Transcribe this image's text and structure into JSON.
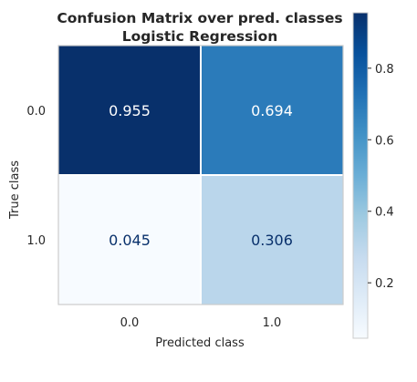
{
  "chart_data": {
    "type": "heatmap",
    "title": "Confusion Matrix over pred. classes",
    "subtitle": "Logistic Regression",
    "xlabel": "Predicted class",
    "ylabel": "True class",
    "x_categories": [
      "0.0",
      "1.0"
    ],
    "y_categories": [
      "0.0",
      "1.0"
    ],
    "values": [
      [
        0.955,
        0.694
      ],
      [
        0.045,
        0.306
      ]
    ],
    "value_labels": [
      [
        "0.955",
        "0.694"
      ],
      [
        "0.045",
        "0.306"
      ]
    ],
    "colormap": "Blues",
    "colorbar": {
      "range": [
        0.045,
        0.955
      ],
      "ticks": [
        0.2,
        0.4,
        0.6,
        0.8
      ],
      "tick_labels": [
        "0.2",
        "0.4",
        "0.6",
        "0.8"
      ]
    },
    "grid": false
  }
}
